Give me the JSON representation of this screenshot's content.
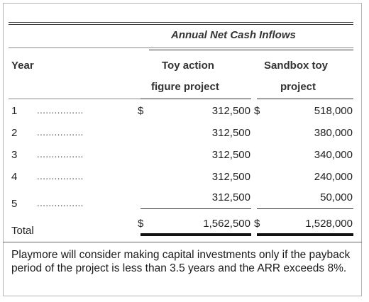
{
  "table": {
    "group_header": "Annual Net Cash Inflows",
    "col_year": "Year",
    "col_toy_line1": "Toy action",
    "col_toy_line2": "figure project",
    "col_sandbox_line1": "Sandbox toy",
    "col_sandbox_line2": "project",
    "rows": [
      {
        "year": "1",
        "dots": "................",
        "dollar_toy": "$",
        "toy": "312,500",
        "dollar_sand": "$",
        "sandbox": "518,000"
      },
      {
        "year": "2",
        "dots": "................",
        "dollar_toy": "",
        "toy": "312,500",
        "dollar_sand": "",
        "sandbox": "380,000"
      },
      {
        "year": "3",
        "dots": "................",
        "dollar_toy": "",
        "toy": "312,500",
        "dollar_sand": "",
        "sandbox": "340,000"
      },
      {
        "year": "4",
        "dots": "................",
        "dollar_toy": "",
        "toy": "312,500",
        "dollar_sand": "",
        "sandbox": "240,000"
      },
      {
        "year": "5",
        "dots": "................",
        "dollar_toy": "",
        "toy": "312,500",
        "dollar_sand": "",
        "sandbox": "50,000"
      }
    ],
    "total_label": "Total",
    "total_dollar_toy": "$",
    "total_toy": "1,562,500",
    "total_dollar_sand": "$",
    "total_sandbox": "1,528,000"
  },
  "note": "Playmore will consider making capital investments only if the payback period of the project is less than 3.5 years and the ARR exceeds 8%."
}
